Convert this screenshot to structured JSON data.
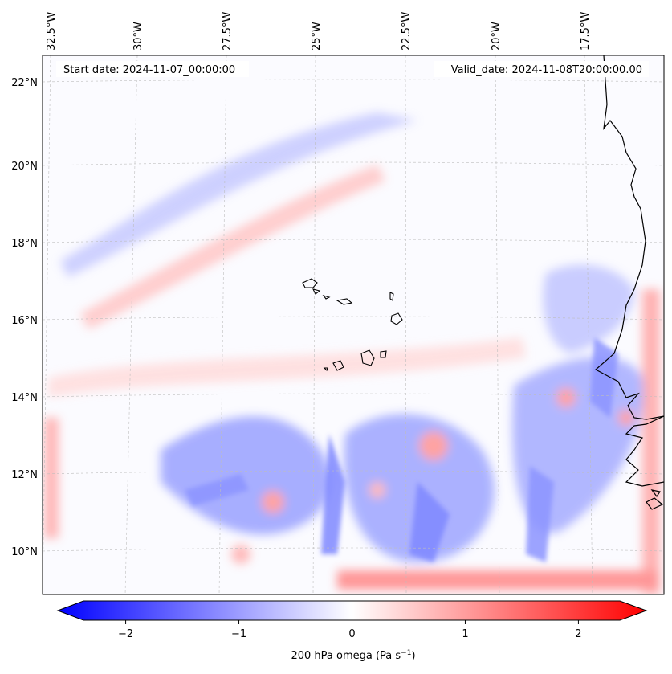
{
  "map": {
    "start_date": "Start date: 2024-11-07_00:00:00",
    "valid_date": "Valid_date: 2024-11-08T20:00:00.00",
    "lon_labels": [
      "32.5°W",
      "30°W",
      "27.5°W",
      "25°W",
      "22.5°W",
      "20°W",
      "17.5°W"
    ],
    "lat_labels": [
      "22°N",
      "20°N",
      "18°N",
      "16°N",
      "14°N",
      "12°N",
      "10°N"
    ],
    "extent": {
      "lon_min": -33.0,
      "lon_max": -15.8,
      "lat_min": 8.9,
      "lat_max": 22.7
    },
    "field_colors": {
      "negative": "#0000ff",
      "zero": "#ffffff",
      "positive": "#ff0000"
    },
    "coastline_color": "#000000"
  },
  "colorbar": {
    "label": "200 hPa omega (Pa s",
    "label_sup": "−1",
    "label_close": ")",
    "ticks": [
      "−2",
      "−1",
      "0",
      "1",
      "2"
    ],
    "tick_values": [
      -2,
      -1,
      0,
      1,
      2
    ],
    "range": [
      -2.6,
      2.6
    ]
  }
}
